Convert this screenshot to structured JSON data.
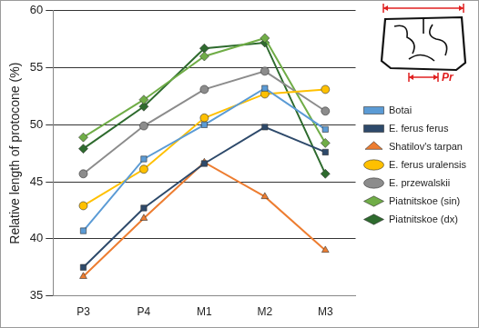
{
  "chart_data": {
    "type": "line",
    "y_label": "Relative length of protocone (%)",
    "categories": [
      "P3",
      "P4",
      "M1",
      "M2",
      "M3"
    ],
    "series": [
      {
        "name": "Botai",
        "color": "#5b9bd5",
        "marker": "square",
        "values": [
          40.7,
          47.0,
          50.0,
          53.2,
          49.6
        ]
      },
      {
        "name": "E. ferus ferus",
        "color": "#2e4a6b",
        "marker": "square",
        "values": [
          37.5,
          42.7,
          46.6,
          49.8,
          47.6
        ]
      },
      {
        "name": "Shatilov's tarpan",
        "color": "#ed7d31",
        "marker": "triangle",
        "values": [
          36.7,
          41.8,
          46.7,
          43.7,
          39.0
        ]
      },
      {
        "name": "E. ferus uralensis",
        "color": "#ffc000",
        "marker": "circle",
        "values": [
          42.9,
          46.1,
          50.6,
          52.7,
          53.1
        ]
      },
      {
        "name": "E. przewalskii",
        "color": "#8c8c8c",
        "marker": "circle",
        "values": [
          45.7,
          49.9,
          53.1,
          54.7,
          51.2
        ]
      },
      {
        "name": "Piatnitskoe (sin)",
        "color": "#70ad47",
        "marker": "diamond",
        "values": [
          48.9,
          52.2,
          56.0,
          57.6,
          48.4
        ]
      },
      {
        "name": "Piatnitskoe (dx)",
        "color": "#2e6b2e",
        "marker": "diamond",
        "values": [
          47.9,
          51.6,
          56.7,
          57.2,
          45.7
        ]
      }
    ],
    "ylim": [
      35,
      60
    ],
    "yticks": [
      35,
      40,
      45,
      50,
      55,
      60
    ],
    "grid": true,
    "legend": "right",
    "annotations": [
      {
        "text": "Pr"
      }
    ]
  }
}
